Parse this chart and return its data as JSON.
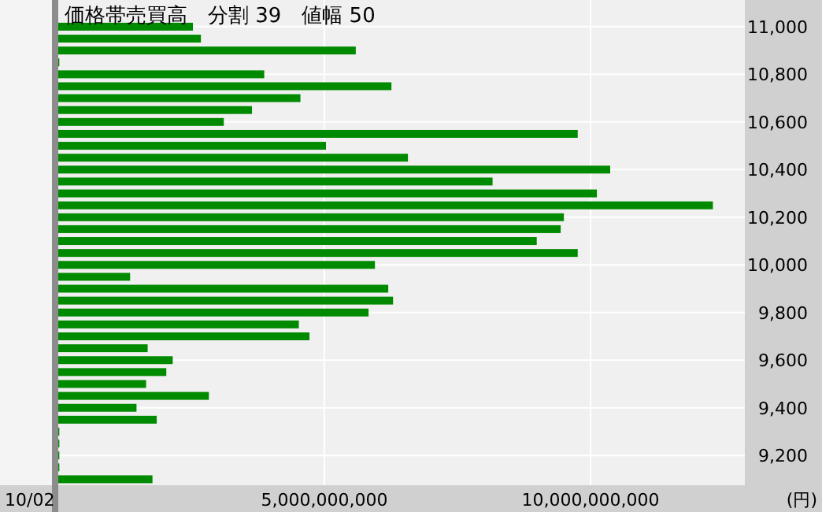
{
  "chart_data": {
    "type": "bar",
    "orientation": "horizontal",
    "title": "価格帯売買高　分割 39　値幅 50",
    "ylabel": "(円)",
    "annotations": [
      "10/02"
    ],
    "x": [
      9100,
      9150,
      9200,
      9250,
      9300,
      9350,
      9400,
      9450,
      9500,
      9550,
      9600,
      9650,
      9700,
      9750,
      9800,
      9850,
      9900,
      9950,
      10000,
      10050,
      10100,
      10150,
      10200,
      10250,
      10300,
      10350,
      10400,
      10450,
      10500,
      10550,
      10600,
      10650,
      10700,
      10750,
      10800,
      10850,
      10900,
      10950,
      11000
    ],
    "values": [
      1770000000,
      20000000,
      20000000,
      20000000,
      20000000,
      1850000000,
      1470000000,
      2830000000,
      1650000000,
      2030000000,
      2150000000,
      1680000000,
      4720000000,
      4520000000,
      5830000000,
      6290000000,
      6200000000,
      1350000000,
      5950000000,
      9760000000,
      8990000000,
      9440000000,
      9500000000,
      12300000000,
      10120000000,
      8160000000,
      10370000000,
      6570000000,
      5030000000,
      9760000000,
      3110000000,
      3640000000,
      4550000000,
      6260000000,
      3870000000,
      20000000,
      5590000000,
      2680000000,
      2530000000
    ],
    "color": "#008a00",
    "xlim": [
      0,
      12900000000
    ],
    "xticks": [
      {
        "value": 5000000000,
        "label": "5,000,000,000"
      },
      {
        "value": 10000000000,
        "label": "10,000,000,000"
      }
    ],
    "ylim": [
      9075,
      11112
    ],
    "yticks": [
      {
        "value": 9200,
        "label": "9,200"
      },
      {
        "value": 9400,
        "label": "9,400"
      },
      {
        "value": 9600,
        "label": "9,600"
      },
      {
        "value": 9800,
        "label": "9,800"
      },
      {
        "value": 10000,
        "label": "10,000"
      },
      {
        "value": 10200,
        "label": "10,200"
      },
      {
        "value": 10400,
        "label": "10,400"
      },
      {
        "value": 10600,
        "label": "10,600"
      },
      {
        "value": 10800,
        "label": "10,800"
      },
      {
        "value": 11000,
        "label": "11,000"
      }
    ],
    "grid": true
  }
}
